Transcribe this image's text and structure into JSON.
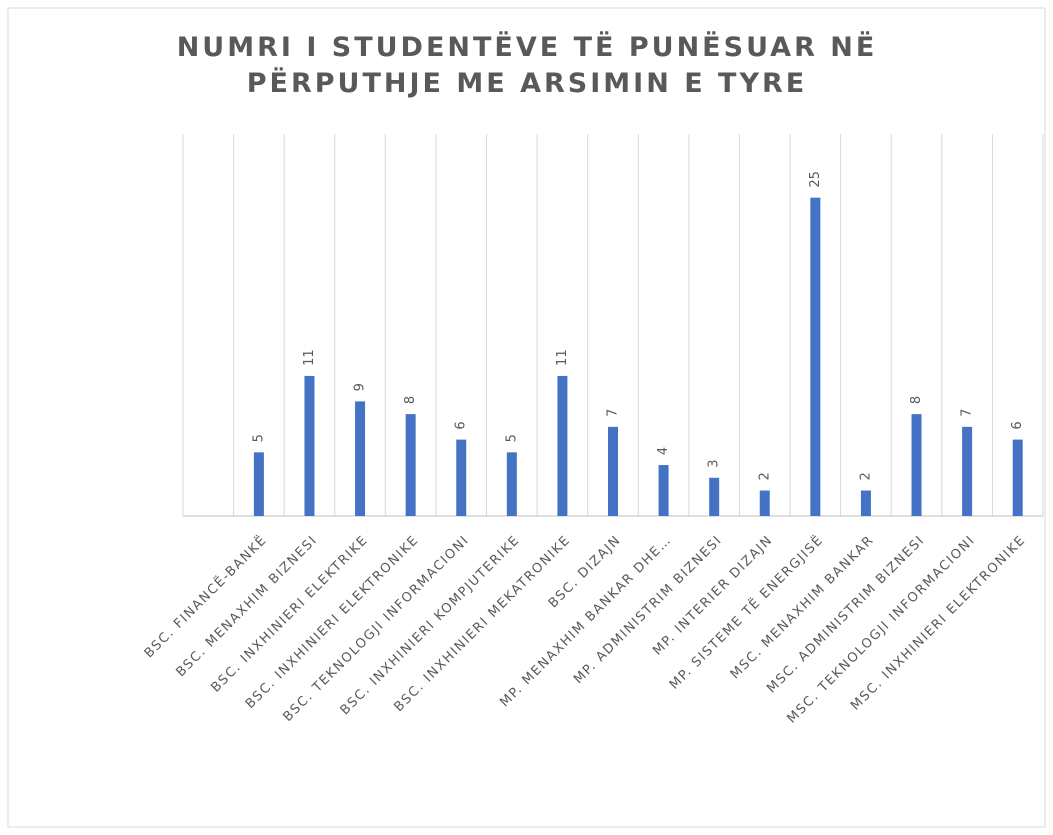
{
  "chart_data": {
    "type": "bar",
    "title": "NUMRI I STUDENTËVE TË PUNËSUAR NË PËRPUTHJE ME ARSIMIN E TYRE",
    "categories": [
      null,
      "BSC. FINANCË-BANKË",
      "BSC. MENAXHIM BIZNESI",
      "BSC. INXHINIERI ELEKTRIKE",
      "BSC. INXHINIERI ELEKTRONIKE",
      "BSC. TEKNOLOGJI INFORMACIONI",
      "BSC. INXHINIERI KOMPJUTERIKE",
      "BSC. INXHINIERI MEKATRONIKE",
      "BSC. DIZAJN",
      "MP. MENAXHIM BANKAR DHE…",
      "MP. ADMINISTRIM BIZNESI",
      "MP. INTERIER DIZAJN",
      "MP. SISTEME TË ENERGJISË",
      "MSC. MENAXHIM BANKAR",
      "MSC. ADMINISTRIM BIZNESI",
      "MSC. TEKNOLOGJI INFORMACIONI",
      "MSC. INXHINIERI ELEKTRONIKE"
    ],
    "values": [
      null,
      5,
      11,
      9,
      8,
      6,
      5,
      11,
      7,
      4,
      3,
      2,
      25,
      2,
      8,
      7,
      6
    ],
    "color": "#4472c4",
    "ylim": [
      0,
      30
    ]
  }
}
